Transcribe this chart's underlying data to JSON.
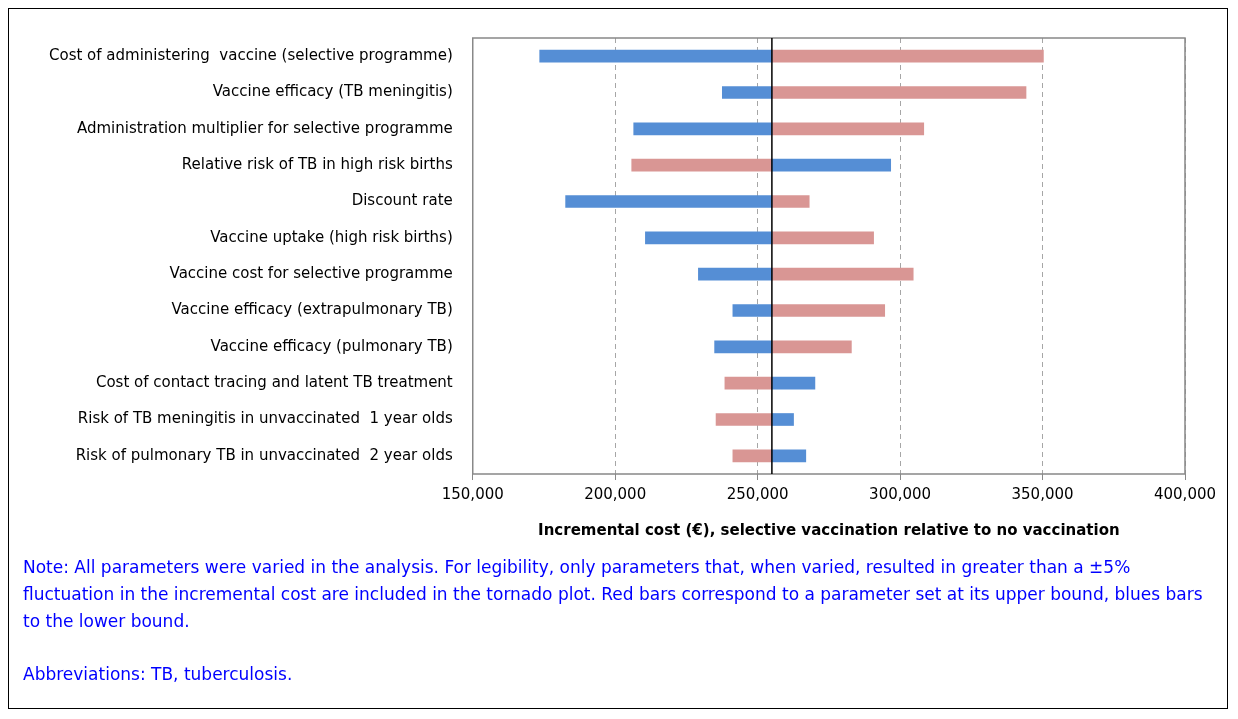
{
  "chart_data": {
    "type": "bar",
    "orientation": "horizontal",
    "xlabel": "Incremental cost (€), selective vaccination relative to no vaccination",
    "categories": [
      "Cost of administering  vaccine (selective programme)",
      "Vaccine efficacy (TB meningitis)",
      "Administration multiplier for selective programme",
      "Relative risk of TB in high risk births",
      "Discount rate",
      "Vaccine uptake (high risk births)",
      "Vaccine cost for selective programme",
      "Vaccine efficacy (extrapulmonary TB)",
      "Vaccine efficacy (pulmonary TB)",
      "Cost of contact tracing and latent TB treatment",
      "Risk of TB meningitis in unvaccinated  1 year olds",
      "Risk of pulmonary TB in unvaccinated  2 year olds"
    ],
    "series": [
      {
        "color": "#558ed5",
        "base": [
          255000,
          255000,
          255000,
          255000,
          255000,
          255000,
          255000,
          255000,
          255000,
          255000,
          255000,
          255000
        ],
        "values": [
          -81500,
          -17400,
          -48500,
          41700,
          -72400,
          -44400,
          -25800,
          -13700,
          -20100,
          15100,
          7600,
          11900
        ]
      },
      {
        "color": "#d99694",
        "base": [
          255000,
          255000,
          255000,
          255000,
          255000,
          255000,
          255000,
          255000,
          255000,
          255000,
          255000,
          255000
        ],
        "values": [
          95300,
          89200,
          53300,
          -49200,
          13100,
          35700,
          49600,
          39600,
          27900,
          -16500,
          -19600,
          -13700
        ]
      }
    ],
    "xlim": [
      150000,
      400000
    ],
    "xticks": [
      {
        "value": 150000,
        "label": "150,000"
      },
      {
        "value": 200000,
        "label": "200,000"
      },
      {
        "value": 250000,
        "label": "250,000"
      },
      {
        "value": 300000,
        "label": "300,000"
      },
      {
        "value": 350000,
        "label": "350,000"
      },
      {
        "value": 400000,
        "label": "400,000"
      }
    ],
    "grid": "x",
    "line_style": "dashed",
    "ref_lines": [
      {
        "axis": "x",
        "value": 255000,
        "color": "#000000"
      }
    ],
    "annotations": [
      "Note: All parameters were varied in the analysis. For legibility, only parameters that, when varied, resulted in greater than a ±5% fluctuation in the incremental cost are included in the tornado plot. Red bars correspond to a parameter set at its upper bound, blues bars to the lower bound.",
      "Abbreviations: TB, tuberculosis."
    ]
  }
}
